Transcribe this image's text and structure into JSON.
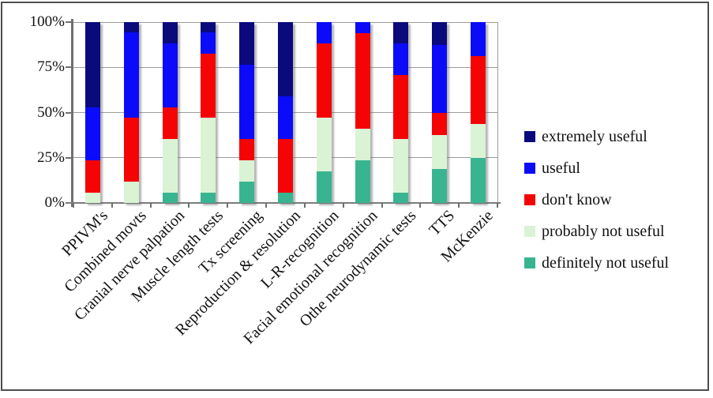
{
  "figure": {
    "background": "#ffffff",
    "frame_color": "#4e4e4e",
    "gridline_color": "#9c9c9c",
    "axis_color": "#707070"
  },
  "chart_data": {
    "type": "bar",
    "stacked": true,
    "percent_stacked": true,
    "title": "",
    "xlabel": "",
    "ylabel": "",
    "ylim": [
      0,
      100
    ],
    "grid": true,
    "legend_position": "right",
    "yticks": [
      "0%",
      "25%",
      "50%",
      "75%",
      "100%"
    ],
    "categories": [
      "PPIVM's",
      "Combined movts",
      "Cranial nerve palpation",
      "Muscle length tests",
      "Tx screening",
      "Reproduction & resolution",
      "L-R-recognition",
      "Facial emotional recognition",
      "Othe neurodynamic tests",
      "TTS",
      "McKenzie"
    ],
    "series": [
      {
        "name": "definitely not useful",
        "color": "#39b491",
        "values": [
          0,
          0,
          5.9,
          5.9,
          11.8,
          5.9,
          17.6,
          23.5,
          5.9,
          18.8,
          25.0
        ]
      },
      {
        "name": "probably not useful",
        "color": "#d9f3d4",
        "values": [
          5.9,
          11.8,
          29.4,
          41.2,
          11.8,
          0,
          29.4,
          17.6,
          29.4,
          18.7,
          18.7
        ]
      },
      {
        "name": "don't know",
        "color": "#f40404",
        "values": [
          17.6,
          35.3,
          17.6,
          35.3,
          11.8,
          29.4,
          41.2,
          52.9,
          35.3,
          12.5,
          37.5
        ]
      },
      {
        "name": "useful",
        "color": "#0b0bfa",
        "values": [
          29.4,
          47.1,
          35.3,
          11.8,
          41.2,
          23.5,
          11.8,
          6.0,
          17.6,
          37.5,
          18.8
        ]
      },
      {
        "name": "extremely useful",
        "color": "#0a0a7d",
        "values": [
          47.1,
          5.8,
          11.8,
          5.8,
          23.4,
          41.2,
          0,
          0,
          11.8,
          12.5,
          0
        ]
      }
    ],
    "legend_order_top_to_bottom": [
      "extremely useful",
      "useful",
      "don't know",
      "probably not useful",
      "definitely not useful"
    ]
  }
}
